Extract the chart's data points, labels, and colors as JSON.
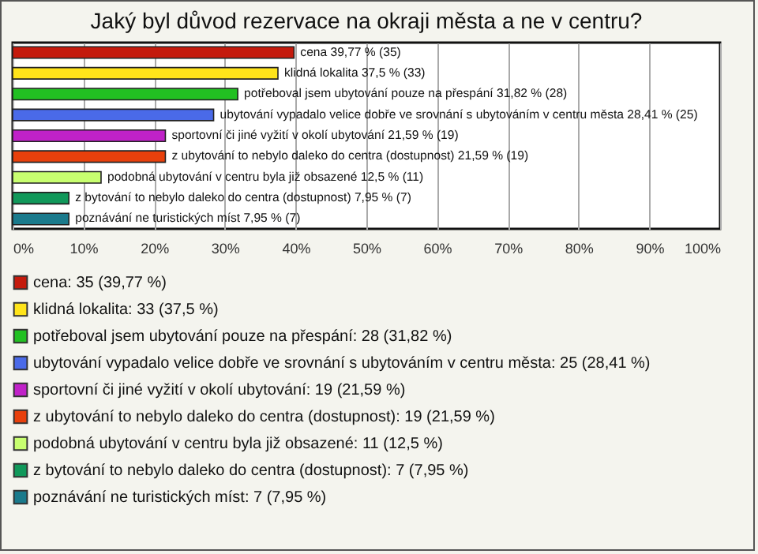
{
  "chart_data": {
    "type": "bar",
    "orientation": "horizontal",
    "title": "Jaký byl důvod rezervace na okraji města a ne v centru?",
    "categories": [
      null,
      null,
      null,
      null,
      null,
      null,
      null,
      null,
      null
    ],
    "series": [
      {
        "name": "cena: 35 (39,77 %)",
        "color": "#c41a0c",
        "values": [
          39.77,
          null,
          null,
          null,
          null,
          null,
          null,
          null,
          null
        ],
        "value_labels": [
          "cena 39,77 % (35)",
          null,
          null,
          null,
          null,
          null,
          null,
          null,
          null
        ]
      },
      {
        "name": "klidná lokalita: 33 (37,5 %)",
        "color": "#ffe41a",
        "values": [
          null,
          37.5,
          null,
          null,
          null,
          null,
          null,
          null,
          null
        ],
        "value_labels": [
          null,
          "klidná lokalita 37,5 % (33)",
          null,
          null,
          null,
          null,
          null,
          null,
          null
        ]
      },
      {
        "name": "potřeboval jsem ubytování pouze na přespání: 28 (31,82 %)",
        "color": "#22c022",
        "values": [
          null,
          null,
          31.82,
          null,
          null,
          null,
          null,
          null,
          null
        ],
        "value_labels": [
          null,
          null,
          "potřeboval jsem ubytování pouze na přespání 31,82 % (28)",
          null,
          null,
          null,
          null,
          null,
          null
        ]
      },
      {
        "name": "ubytování vypadalo velice dobře ve srovnání s ubytováním v centru města: 25 (28,41 %)",
        "color": "#4a6ae8",
        "values": [
          null,
          null,
          null,
          28.41,
          null,
          null,
          null,
          null,
          null
        ],
        "value_labels": [
          null,
          null,
          null,
          "ubytování vypadalo velice dobře ve srovnání s ubytováním v centru města 28,41 % (25)",
          null,
          null,
          null,
          null,
          null
        ]
      },
      {
        "name": "sportovní či jiné vyžití v okolí ubytování: 19 (21,59 %)",
        "color": "#c022c8",
        "values": [
          null,
          null,
          null,
          null,
          21.59,
          null,
          null,
          null,
          null
        ],
        "value_labels": [
          null,
          null,
          null,
          null,
          "sportovní či jiné vyžití v okolí ubytování 21,59 % (19)",
          null,
          null,
          null,
          null
        ]
      },
      {
        "name": "z ubytování to nebylo daleko do centra (dostupnost): 19 (21,59 %)",
        "color": "#e8400c",
        "values": [
          null,
          null,
          null,
          null,
          null,
          21.59,
          null,
          null,
          null
        ],
        "value_labels": [
          null,
          null,
          null,
          null,
          null,
          "z ubytování to nebylo daleko do centra (dostupnost) 21,59 % (19)",
          null,
          null,
          null
        ]
      },
      {
        "name": "podobná ubytování v centru byla již obsazené: 11 (12,5 %)",
        "color": "#c8ff70",
        "values": [
          null,
          null,
          null,
          null,
          null,
          null,
          12.5,
          null,
          null
        ],
        "value_labels": [
          null,
          null,
          null,
          null,
          null,
          null,
          "podobná ubytování v centru byla již obsazené 12,5 % (11)",
          null,
          null
        ]
      },
      {
        "name": "z bytování to nebylo daleko do centra (dostupnost): 7 (7,95 %)",
        "color": "#10985a",
        "values": [
          null,
          null,
          null,
          null,
          null,
          null,
          null,
          7.95,
          null
        ],
        "value_labels": [
          null,
          null,
          null,
          null,
          null,
          null,
          null,
          "z bytování to nebylo daleko do centra (dostupnost) 7,95 % (7)",
          null
        ]
      },
      {
        "name": "poznávání ne turistických míst: 7 (7,95 %)",
        "color": "#1a7a8c",
        "values": [
          null,
          null,
          null,
          null,
          null,
          null,
          null,
          null,
          7.95
        ],
        "value_labels": [
          null,
          null,
          null,
          null,
          null,
          null,
          null,
          null,
          "poznávání ne turistických míst 7,95 % (7)"
        ]
      }
    ],
    "xlim": [
      0,
      100
    ],
    "xticks": [
      {
        "value": 0,
        "label": "0%"
      },
      {
        "value": 10,
        "label": "10%"
      },
      {
        "value": 20,
        "label": "20%"
      },
      {
        "value": 30,
        "label": "30%"
      },
      {
        "value": 40,
        "label": "40%"
      },
      {
        "value": 50,
        "label": "50%"
      },
      {
        "value": 60,
        "label": "60%"
      },
      {
        "value": 70,
        "label": "70%"
      },
      {
        "value": 80,
        "label": "80%"
      },
      {
        "value": 90,
        "label": "90%"
      },
      {
        "value": 100,
        "label": "100%"
      }
    ],
    "grid": "x",
    "legend": "bottom",
    "tick_labels": "x"
  }
}
